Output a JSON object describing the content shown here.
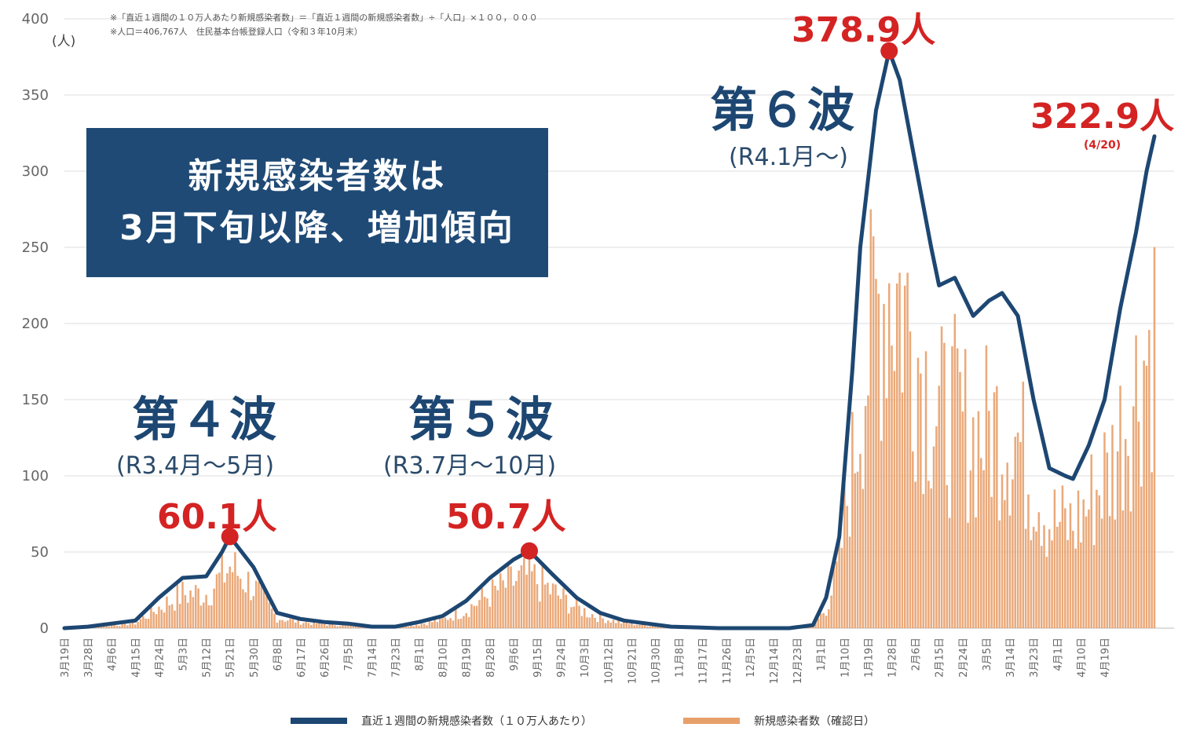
{
  "notes": {
    "line1": "※「直近１週間の１０万人あたり新規感染者数」＝「直近１週間の新規感染者数」÷「人口」×１００，０００",
    "line2": "※人口＝406,767人　住民基本台帳登録人口（令和３年10月末）"
  },
  "unit_label": "(人)",
  "banner": {
    "line1": "新規感染者数は",
    "line2": "3月下旬以降、増加傾向"
  },
  "waves": [
    {
      "title": "第４波",
      "period": "(R3.4月～5月)",
      "peak_label": "60.1人"
    },
    {
      "title": "第５波",
      "period": "(R3.7月～10月)",
      "peak_label": "50.7人"
    },
    {
      "title": "第６波",
      "period": "(R4.1月～)",
      "peak_label": "378.9人"
    }
  ],
  "latest": {
    "label": "322.9人",
    "date": "(4/20)"
  },
  "colors": {
    "line": "#1d4772",
    "bars": "#e8a06b",
    "peak": "#d42323",
    "banner": "#1f4a76"
  },
  "chart_data": {
    "type": "bar+line",
    "ylim": [
      0,
      400
    ],
    "yticks": [
      0,
      50,
      100,
      150,
      200,
      250,
      300,
      350,
      400
    ],
    "x_ticks": [
      "3月19日",
      "3月28日",
      "4月6日",
      "4月15日",
      "4月24日",
      "5月3日",
      "5月12日",
      "5月21日",
      "5月30日",
      "6月8日",
      "6月17日",
      "6月26日",
      "7月5日",
      "7月14日",
      "7月23日",
      "8月1日",
      "8月10日",
      "8月19日",
      "8月28日",
      "9月6日",
      "9月15日",
      "9月24日",
      "10月3日",
      "10月12日",
      "10月21日",
      "10月30日",
      "11月8日",
      "11月17日",
      "11月26日",
      "12月5日",
      "12月14日",
      "12月23日",
      "1月1日",
      "1月10日",
      "1月19日",
      "1月28日",
      "2月6日",
      "2月15日",
      "2月24日",
      "3月5日",
      "3月14日",
      "3月23日",
      "4月1日",
      "4月10日",
      "4月19日"
    ],
    "series": [
      {
        "name": "直近１週間の新規感染者数（１０万人あたり）",
        "kind": "line",
        "points": [
          [
            0,
            0
          ],
          [
            9,
            1
          ],
          [
            18,
            3
          ],
          [
            27,
            5
          ],
          [
            36,
            20
          ],
          [
            45,
            33
          ],
          [
            54,
            34
          ],
          [
            60,
            50
          ],
          [
            63,
            60.1
          ],
          [
            72,
            40
          ],
          [
            81,
            10
          ],
          [
            90,
            6
          ],
          [
            99,
            4
          ],
          [
            108,
            3
          ],
          [
            117,
            1
          ],
          [
            126,
            1
          ],
          [
            135,
            4
          ],
          [
            144,
            8
          ],
          [
            153,
            18
          ],
          [
            162,
            33
          ],
          [
            171,
            45
          ],
          [
            177,
            50.7
          ],
          [
            186,
            35
          ],
          [
            195,
            20
          ],
          [
            204,
            10
          ],
          [
            213,
            5
          ],
          [
            222,
            3
          ],
          [
            231,
            1
          ],
          [
            240,
            0.5
          ],
          [
            249,
            0
          ],
          [
            258,
            0
          ],
          [
            267,
            0
          ],
          [
            276,
            0
          ],
          [
            285,
            2
          ],
          [
            290,
            20
          ],
          [
            295,
            60
          ],
          [
            300,
            170
          ],
          [
            303,
            250
          ],
          [
            309,
            340
          ],
          [
            314,
            378.9
          ],
          [
            318,
            360
          ],
          [
            324,
            305
          ],
          [
            330,
            250
          ],
          [
            333,
            225
          ],
          [
            339,
            230
          ],
          [
            346,
            205
          ],
          [
            352,
            215
          ],
          [
            357,
            220
          ],
          [
            363,
            205
          ],
          [
            369,
            150
          ],
          [
            375,
            105
          ],
          [
            381,
            100
          ],
          [
            384,
            98
          ],
          [
            390,
            120
          ],
          [
            396,
            150
          ],
          [
            402,
            210
          ],
          [
            408,
            260
          ],
          [
            412,
            300
          ],
          [
            415,
            322.9
          ]
        ]
      },
      {
        "name": "新規感染者数（確認日）",
        "kind": "bar"
      }
    ],
    "peaks": [
      {
        "day": 63,
        "value": 60.1
      },
      {
        "day": 177,
        "value": 50.7
      },
      {
        "day": 314,
        "value": 378.9
      }
    ],
    "latest_point": {
      "day": 415,
      "value": 322.9
    }
  }
}
